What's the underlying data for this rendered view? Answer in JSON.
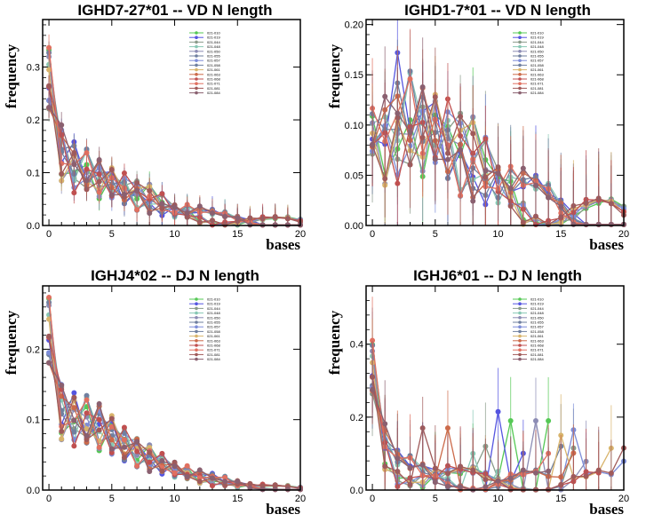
{
  "chart_data": [
    {
      "type": "line",
      "title": "IGHD7-27*01 -- VD N length",
      "xlabel": "bases",
      "ylabel": "frequency",
      "xlim": [
        -0.5,
        20
      ],
      "ylim": [
        0,
        0.39
      ],
      "xticks": [
        0,
        5,
        10,
        15,
        20
      ],
      "yticks": [
        0.0,
        0.1,
        0.2,
        0.3
      ],
      "ytick_labels": [
        "0.0",
        "0.1",
        "0.2",
        "0.3"
      ],
      "error_bars": "small",
      "ends": [
        20
      ],
      "spikes": [],
      "base": [
        0.275,
        0.14,
        0.11,
        0.1,
        0.09,
        0.08,
        0.07,
        0.06,
        0.05,
        0.04,
        0.03,
        0.025,
        0.02,
        0.015,
        0.012,
        0.01,
        0.008,
        0.006,
        0.005,
        0.004,
        0.003
      ]
    },
    {
      "type": "line",
      "title": "IGHD1-7*01 -- VD N length",
      "xlabel": "bases",
      "ylabel": "frequency",
      "xlim": [
        -0.5,
        20
      ],
      "ylim": [
        0,
        0.205
      ],
      "xticks": [
        0,
        5,
        10,
        15,
        20
      ],
      "yticks": [
        0.0,
        0.05,
        0.1,
        0.15,
        0.2
      ],
      "ytick_labels": [
        "0.00",
        "0.05",
        "0.10",
        "0.15",
        "0.20"
      ],
      "error_bars": "large",
      "ends": [
        20
      ],
      "spikes": [
        [
          1,
          2,
          0.172
        ]
      ],
      "base": [
        0.09,
        0.085,
        0.095,
        0.1,
        0.098,
        0.095,
        0.085,
        0.075,
        0.065,
        0.055,
        0.045,
        0.035,
        0.028,
        0.022,
        0.017,
        0.012,
        0.009,
        0.007,
        0.005,
        0.004,
        0.003
      ]
    },
    {
      "type": "line",
      "title": "IGHJ4*02 -- DJ N length",
      "xlabel": "bases",
      "ylabel": "frequency",
      "xlim": [
        -0.5,
        20
      ],
      "ylim": [
        0,
        0.29
      ],
      "xticks": [
        0,
        5,
        10,
        15,
        20
      ],
      "yticks": [
        0.0,
        0.1,
        0.2
      ],
      "ytick_labels": [
        "0.0",
        "0.1",
        "0.2"
      ],
      "error_bars": "tiny",
      "ends": [
        20
      ],
      "spikes": [],
      "base": [
        0.225,
        0.113,
        0.1,
        0.097,
        0.09,
        0.078,
        0.066,
        0.056,
        0.045,
        0.037,
        0.03,
        0.024,
        0.019,
        0.015,
        0.012,
        0.009,
        0.006,
        0.004,
        0.003,
        0.002,
        0.001
      ]
    },
    {
      "type": "line",
      "title": "IGHJ6*01 -- DJ N length",
      "xlabel": "bases",
      "ylabel": "frequency",
      "xlim": [
        -0.5,
        20
      ],
      "ylim": [
        0,
        0.56
      ],
      "xticks": [
        0,
        5,
        10,
        15,
        20
      ],
      "yticks": [
        0.0,
        0.2,
        0.4
      ],
      "ytick_labels": [
        "0.0",
        "0.2",
        "0.4"
      ],
      "error_bars": "huge",
      "ends": [
        14,
        12,
        16,
        10,
        17,
        15,
        20,
        13,
        19,
        16,
        18,
        14,
        20
      ],
      "spikes": [
        [
          1,
          10,
          0.215
        ],
        [
          0,
          11,
          0.19
        ],
        [
          0,
          14,
          0.19
        ],
        [
          4,
          13,
          0.19
        ],
        [
          6,
          16,
          0.165
        ],
        [
          8,
          15,
          0.15
        ],
        [
          11,
          17,
          0.15
        ],
        [
          3,
          8,
          0.1
        ],
        [
          9,
          6,
          0.17
        ],
        [
          12,
          4,
          0.17
        ],
        [
          2,
          9,
          0.12
        ]
      ],
      "base": [
        0.33,
        0.12,
        0.06,
        0.05,
        0.045,
        0.04,
        0.035,
        0.03,
        0.025,
        0.02,
        0.02,
        0.02,
        0.02,
        0.02,
        0.02,
        0.02,
        0.02,
        0.02,
        0.02,
        0.02,
        0.02
      ]
    }
  ],
  "legend": {
    "entries": [
      "021-010",
      "021-019",
      "021-044",
      "021-048",
      "021-050",
      "021-055",
      "021-057",
      "021-058",
      "021-061",
      "021-063",
      "021-068",
      "021-071",
      "021-081",
      "021-084"
    ],
    "colors": [
      "#55c855",
      "#5555e0",
      "#8a9b8a",
      "#88c8b4",
      "#8c8cb4",
      "#6f7f9f",
      "#7c8cd8",
      "#7080a0",
      "#d8b46c",
      "#cc6a4a",
      "#c05050",
      "#e07060",
      "#a05a5a",
      "#8a6070"
    ]
  }
}
